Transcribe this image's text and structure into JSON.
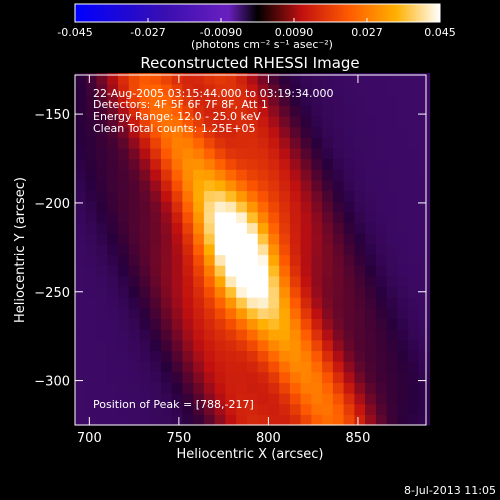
{
  "colors": {
    "background": "#000000",
    "foreground": "#ffffff",
    "colormap": [
      "#0000ff",
      "#3a0fb0",
      "#6a1fc0",
      "#8a2a9a",
      "#c01010",
      "#ff5a00",
      "#ffb000",
      "#ffee50",
      "#ffffff"
    ]
  },
  "colorbar": {
    "tick_labels": [
      "-0.045",
      "-0.027",
      "-0.0090",
      "0.0090",
      "0.027",
      "0.045"
    ],
    "range": [
      -0.045,
      0.045
    ],
    "unit_label": "(photons cm⁻² s⁻¹ asec⁻²)"
  },
  "chart_data": {
    "type": "heatmap",
    "title": "Reconstructed RHESSI Image",
    "xlabel": "Heliocentric X (arcsec)",
    "ylabel": "Heliocentric Y (arcsec)",
    "xlim": [
      692,
      888
    ],
    "ylim": [
      -325,
      -128
    ],
    "x_ticks": [
      700,
      750,
      800,
      850
    ],
    "y_ticks": [
      -150,
      -200,
      -250,
      -300
    ],
    "x_tick_labels": [
      "700",
      "750",
      "800",
      "850"
    ],
    "y_tick_labels": [
      "−150",
      "−200",
      "−250",
      "−300"
    ],
    "annotations": [
      "22-Aug-2005 03:15:44.000 to 03:19:34.000",
      "Detectors: 4F 5F 6F 7F 8F, Att 1",
      "Energy Range: 12.0 - 25.0 keV",
      "Clean     Total counts: 1.25E+05"
    ],
    "peak_label": "Position of Peak = [788,-217]",
    "peak": [
      788,
      -217
    ],
    "peak_value": 0.045,
    "grid": false,
    "source_model": {
      "ridge_start": [
        760,
        -160
      ],
      "ridge_end": [
        810,
        -295
      ],
      "core_center": [
        785,
        -228
      ],
      "note_value_range": [
        -0.045,
        0.045
      ]
    }
  },
  "footer": {
    "date_text": "8-Jul-2013 11:05"
  }
}
